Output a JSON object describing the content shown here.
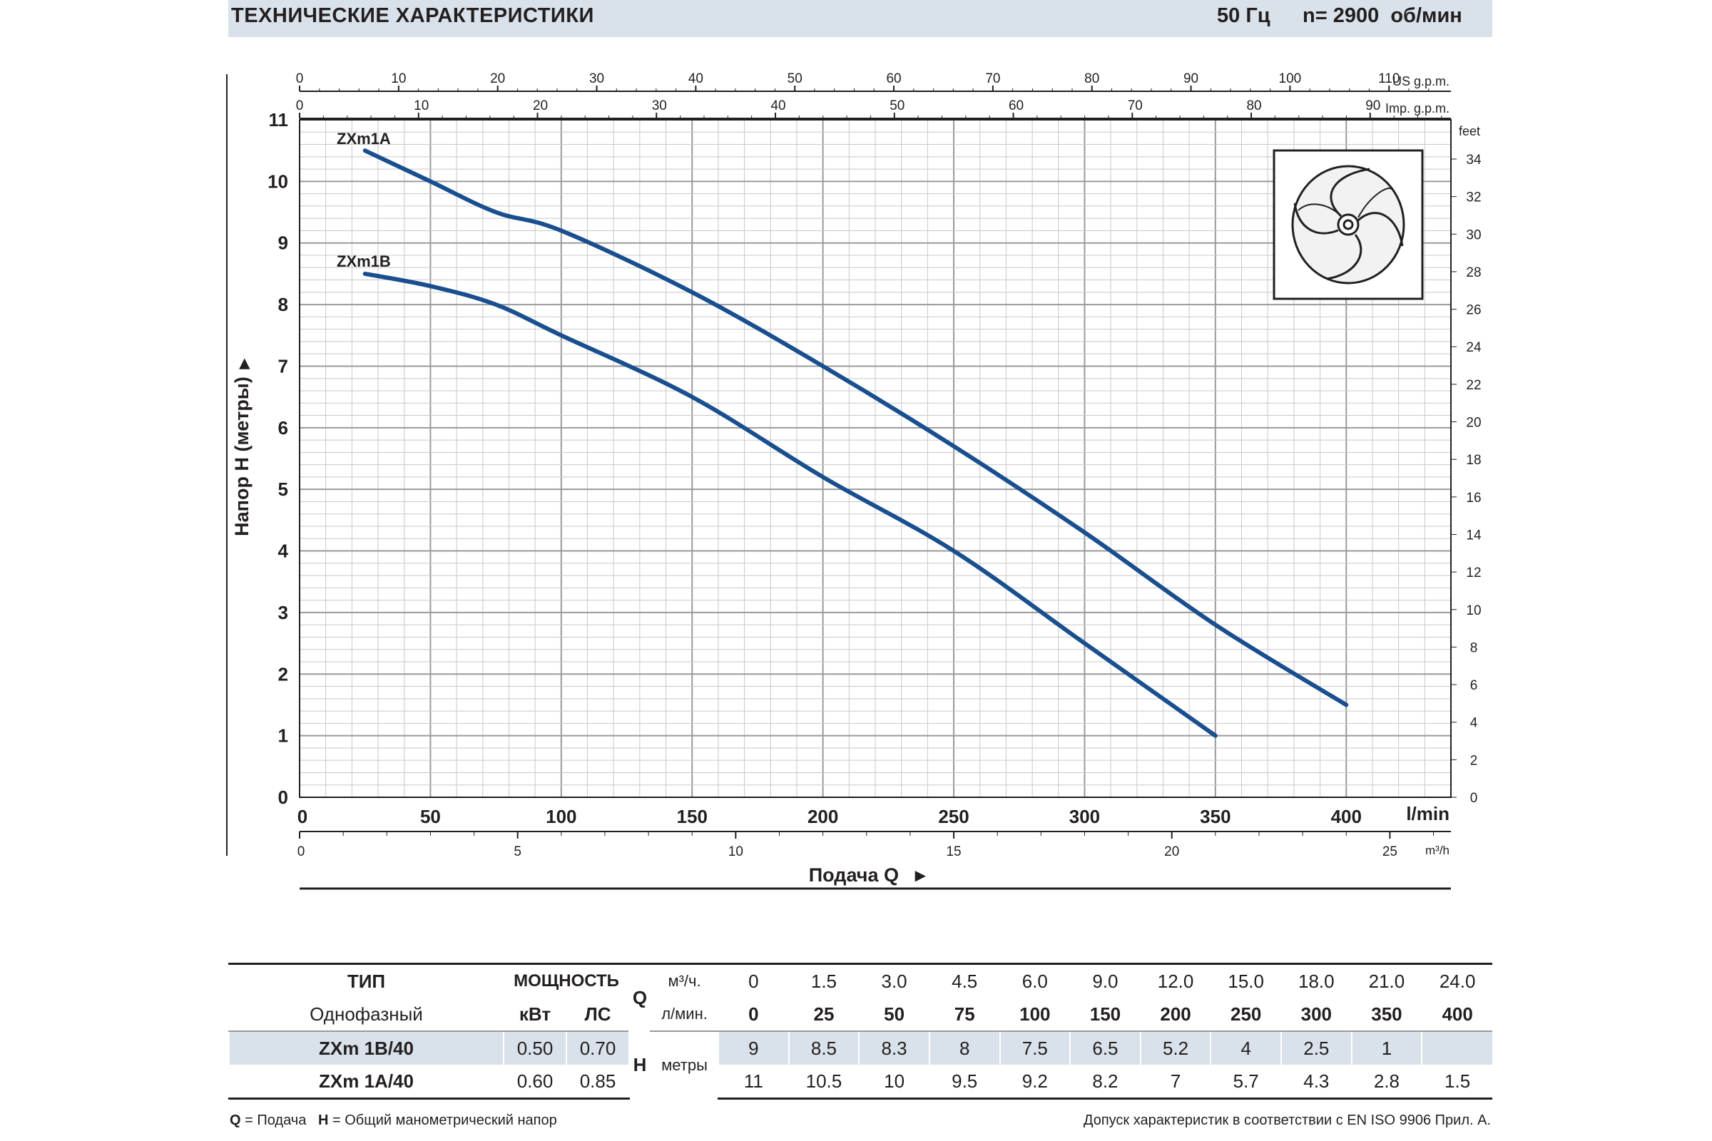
{
  "header": {
    "title": "ТЕХНИЧЕСКИЕ ХАРАКТЕРИСТИКИ",
    "frequency": "50 Гц",
    "speed": "n= 2900  об/мин"
  },
  "chart_data": {
    "type": "line",
    "ylabel": "Напор H  (метры)",
    "xlabel": "Подача Q",
    "x_unit_main": "l/min",
    "x_unit_m3h": "m³/h",
    "x_unit_us": "US g.p.m.",
    "x_unit_imp": "Imp. g.p.m.",
    "y_unit_feet": "feet",
    "xlim": [
      0,
      440
    ],
    "ylim": [
      0,
      11
    ],
    "x_ticks": [
      "0",
      "50",
      "100",
      "150",
      "200",
      "250",
      "300",
      "350",
      "400"
    ],
    "y_ticks": [
      "0",
      "1",
      "2",
      "3",
      "4",
      "5",
      "6",
      "7",
      "8",
      "9",
      "10",
      "11"
    ],
    "m3h_ticks": [
      "0",
      "5",
      "10",
      "15",
      "20",
      "25"
    ],
    "us_ticks": [
      "0",
      "10",
      "20",
      "30",
      "40",
      "50",
      "60",
      "70",
      "80",
      "90",
      "100",
      "110"
    ],
    "imp_ticks": [
      "0",
      "10",
      "20",
      "30",
      "40",
      "50",
      "60",
      "70",
      "80",
      "90"
    ],
    "feet_ticks": [
      "0",
      "2",
      "4",
      "6",
      "8",
      "10",
      "12",
      "14",
      "16",
      "18",
      "20",
      "22",
      "24",
      "26",
      "28",
      "30",
      "32",
      "34"
    ],
    "grid": true,
    "series": [
      {
        "name": "ZXm1A",
        "x": [
          25,
          50,
          75,
          100,
          150,
          200,
          250,
          300,
          350,
          400
        ],
        "y": [
          10.5,
          10.0,
          9.5,
          9.2,
          8.2,
          7.0,
          5.7,
          4.3,
          2.8,
          1.5
        ]
      },
      {
        "name": "ZXm1B",
        "x": [
          25,
          50,
          75,
          100,
          150,
          200,
          250,
          300,
          350
        ],
        "y": [
          8.5,
          8.3,
          8.0,
          7.5,
          6.5,
          5.2,
          4.0,
          2.5,
          1.0
        ]
      }
    ],
    "line_color": "#1a4f8f"
  },
  "table": {
    "type_label": "ТИП",
    "phase_label": "Однофазный",
    "power_label": "МОЩНОСТЬ",
    "kw_label": "кВт",
    "hp_label": "ЛС",
    "q_label": "Q",
    "h_label": "H",
    "m3_label": "м³/ч.",
    "lmin_label": "л/мин.",
    "meters_label": "метры",
    "m3_values": [
      "0",
      "1.5",
      "3.0",
      "4.5",
      "6.0",
      "9.0",
      "12.0",
      "15.0",
      "18.0",
      "21.0",
      "24.0"
    ],
    "lmin_values": [
      "0",
      "25",
      "50",
      "75",
      "100",
      "150",
      "200",
      "250",
      "300",
      "350",
      "400"
    ],
    "rows": [
      {
        "model": "ZXm 1B/40",
        "kw": "0.50",
        "hp": "0.70",
        "h": [
          "9",
          "8.5",
          "8.3",
          "8",
          "7.5",
          "6.5",
          "5.2",
          "4",
          "2.5",
          "1",
          ""
        ]
      },
      {
        "model": "ZXm 1A/40",
        "kw": "0.60",
        "hp": "0.85",
        "h": [
          "11",
          "10.5",
          "10",
          "9.5",
          "9.2",
          "8.2",
          "7",
          "5.7",
          "4.3",
          "2.8",
          "1.5"
        ]
      }
    ]
  },
  "footer": {
    "legend_q_key": "Q",
    "legend_q_text": " = Подача",
    "legend_h_key": "H",
    "legend_h_text": " = Общий манометрический напор",
    "tolerance": "Допуск характеристик в соответствии с EN ISO 9906 Прил. А."
  }
}
